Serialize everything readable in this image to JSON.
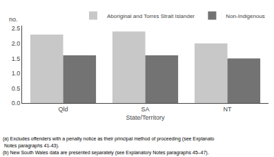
{
  "chart_data": {
    "type": "bar",
    "categories": [
      "Qld",
      "SA",
      "NT"
    ],
    "series": [
      {
        "name": "Aboriginal and Torres Strait Islander",
        "color": "#c8c8c8",
        "values": [
          2.3,
          2.4,
          2.0
        ]
      },
      {
        "name": "Non-Indigenous",
        "color": "#737373",
        "values": [
          1.6,
          1.6,
          1.5
        ]
      }
    ],
    "xlabel": "State/Territory",
    "ylabel": "no.",
    "ylim": [
      0,
      2.6
    ],
    "yticks": [
      {
        "value": 0,
        "label": "0.0"
      },
      0.5,
      {
        "value": 1.0,
        "label": "1.0"
      },
      1.5,
      {
        "value": 2.0,
        "label": "2.0"
      },
      2.5
    ],
    "grid": false,
    "legend": "upper right",
    "annotations": [
      "(a) Excludes offenders with a penalty notice as their principal method of proceeding (see Explanato",
      " Notes paragraphs 41-43).",
      "(b) New South Wales data are presented separately (see Explanatory Notes paragraphs 45–47)."
    ]
  }
}
